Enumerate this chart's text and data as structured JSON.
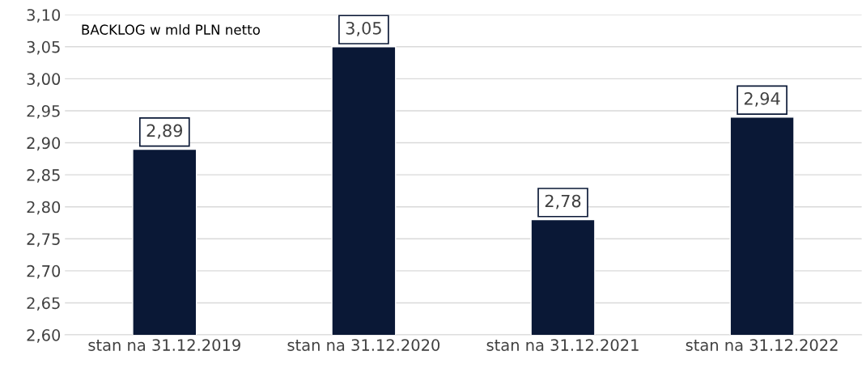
{
  "chart_data": {
    "type": "bar",
    "title": "BACKLOG w mld PLN netto",
    "categories": [
      "stan na 31.12.2019",
      "stan na 31.12.2020",
      "stan na 31.12.2021",
      "stan na 31.12.2022"
    ],
    "values": [
      2.89,
      3.05,
      2.78,
      2.94
    ],
    "value_labels": [
      "2,89",
      "3,05",
      "2,78",
      "2,94"
    ],
    "color": "#0a1836",
    "ylim": [
      2.6,
      3.1
    ],
    "yticks": [
      {
        "value": 2.6,
        "label": "2,60"
      },
      {
        "value": 2.65,
        "label": "2,65"
      },
      {
        "value": 2.7,
        "label": "2,70"
      },
      {
        "value": 2.75,
        "label": "2,75"
      },
      {
        "value": 2.8,
        "label": "2,80"
      },
      {
        "value": 2.85,
        "label": "2,85"
      },
      {
        "value": 2.9,
        "label": "2,90"
      },
      {
        "value": 2.95,
        "label": "2,95"
      },
      {
        "value": 3.0,
        "label": "3,00"
      },
      {
        "value": 3.05,
        "label": "3,05"
      },
      {
        "value": 3.1,
        "label": "3,10"
      }
    ],
    "grid": "y"
  }
}
